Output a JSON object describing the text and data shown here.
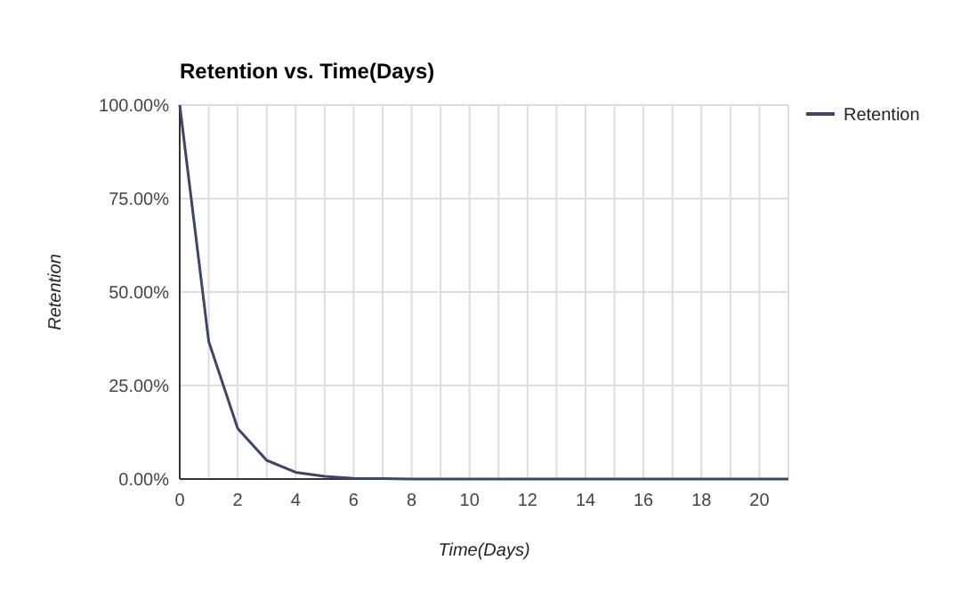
{
  "chart_data": {
    "type": "line",
    "title": "Retention vs. Time(Days)",
    "xlabel": "Time(Days)",
    "ylabel": "Retention",
    "x": [
      0,
      1,
      2,
      3,
      4,
      5,
      6,
      7,
      8,
      9,
      10,
      11,
      12,
      13,
      14,
      15,
      16,
      17,
      18,
      19,
      20,
      21
    ],
    "series": [
      {
        "name": "Retention",
        "color": "#3b4668",
        "values": [
          100,
          36.8,
          13.5,
          5,
          1.8,
          0.7,
          0.2,
          0.1,
          0,
          0,
          0,
          0,
          0,
          0,
          0,
          0,
          0,
          0,
          0,
          0,
          0,
          0
        ]
      }
    ],
    "xlim": [
      0,
      21
    ],
    "xticks": [
      0,
      {
        "value": 1,
        "label": null
      },
      2,
      {
        "value": 3,
        "label": null
      },
      4,
      {
        "value": 5,
        "label": null
      },
      6,
      {
        "value": 7,
        "label": null
      },
      8,
      {
        "value": 9,
        "label": null
      },
      10,
      {
        "value": 11,
        "label": null
      },
      12,
      {
        "value": 13,
        "label": null
      },
      14,
      {
        "value": 15,
        "label": null
      },
      16,
      {
        "value": 17,
        "label": null
      },
      18,
      {
        "value": 19,
        "label": null
      },
      20,
      {
        "value": 21,
        "label": null
      }
    ],
    "ylim": [
      0,
      100
    ],
    "yticks": [
      {
        "value": 0,
        "label": "0.00%"
      },
      {
        "value": 25,
        "label": "25.00%"
      },
      {
        "value": 50,
        "label": "50.00%"
      },
      {
        "value": 75,
        "label": "75.00%"
      },
      {
        "value": 100,
        "label": "100.00%"
      }
    ],
    "grid": true,
    "legend": "top right",
    "marker": "none",
    "line_style": "solid"
  }
}
